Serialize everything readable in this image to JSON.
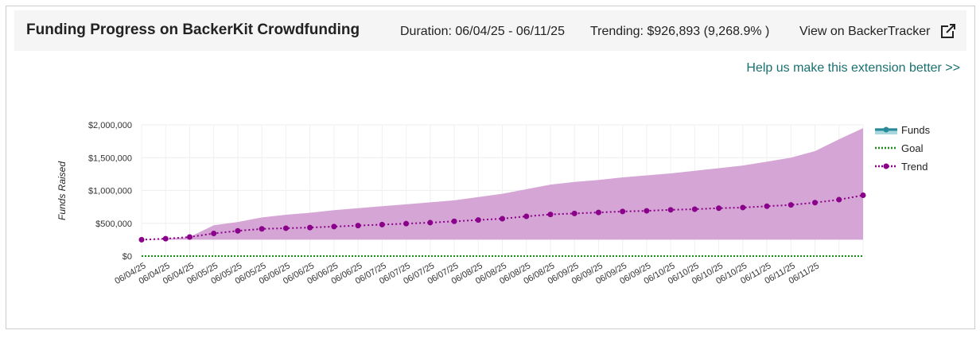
{
  "header": {
    "title": "Funding Progress on BackerKit Crowdfunding",
    "duration": "Duration: 06/04/25 - 06/11/25",
    "trending": "Trending: $926,893 (9,268.9% )",
    "link": "View on BackerTracker"
  },
  "feedback_link": "Help us make this extension better >>",
  "chart_data": {
    "type": "line",
    "ylabel": "Funds Raised",
    "categories": [
      "06/04/25",
      "06/04/25",
      "06/04/25",
      "06/05/25",
      "06/05/25",
      "06/05/25",
      "06/06/25",
      "06/06/25",
      "06/06/25",
      "06/06/25",
      "06/07/25",
      "06/07/25",
      "06/07/25",
      "06/07/25",
      "06/08/25",
      "06/08/25",
      "06/08/25",
      "06/08/25",
      "06/09/25",
      "06/09/25",
      "06/09/25",
      "06/09/25",
      "06/10/25",
      "06/10/25",
      "06/10/25",
      "06/10/25",
      "06/11/25",
      "06/11/25",
      "06/11/25",
      null,
      null
    ],
    "series": [
      {
        "name": "Funds",
        "color": "#2a8a9a",
        "values": [
          250000,
          null,
          null,
          null,
          null,
          null,
          null,
          null,
          null,
          null,
          null,
          null,
          null,
          null,
          null,
          null,
          null,
          null,
          null,
          null,
          null,
          null,
          null,
          null,
          null,
          null,
          null,
          null,
          null,
          null,
          null
        ]
      },
      {
        "name": "Goal",
        "color": "#1a8a1a",
        "values": [
          0,
          0,
          0,
          0,
          0,
          0,
          0,
          0,
          0,
          0,
          0,
          0,
          0,
          0,
          0,
          0,
          0,
          0,
          0,
          0,
          0,
          0,
          0,
          0,
          0,
          0,
          0,
          0,
          0,
          0,
          0
        ]
      },
      {
        "name": "Trend",
        "color": "#8b008b",
        "values": [
          250000,
          265000,
          291000,
          345000,
          385000,
          415000,
          425000,
          435000,
          450000,
          465000,
          480000,
          495000,
          510000,
          530000,
          550000,
          570000,
          606000,
          635000,
          650000,
          665000,
          680000,
          690000,
          705000,
          715000,
          730000,
          740000,
          760000,
          780000,
          815000,
          860000,
          926893
        ]
      }
    ],
    "band": {
      "color": "#d5a6d5",
      "upper": [
        250000,
        265000,
        291000,
        470000,
        520000,
        590000,
        630000,
        660000,
        700000,
        730000,
        760000,
        790000,
        820000,
        850000,
        900000,
        950000,
        1020000,
        1090000,
        1130000,
        1160000,
        1200000,
        1230000,
        1260000,
        1300000,
        1340000,
        1380000,
        1440000,
        1500000,
        1600000,
        1780000,
        1950000
      ],
      "lower": [
        250000,
        250000,
        250000,
        250000,
        250000,
        250000,
        250000,
        250000,
        250000,
        250000,
        250000,
        250000,
        250000,
        250000,
        250000,
        250000,
        250000,
        250000,
        250000,
        250000,
        250000,
        250000,
        250000,
        250000,
        250000,
        250000,
        250000,
        250000,
        250000,
        250000,
        250000
      ]
    },
    "ylim": [
      0,
      2000000
    ],
    "yticks": [
      {
        "value": 0,
        "label": "$0"
      },
      {
        "value": 500000,
        "label": "$500,000"
      },
      {
        "value": 1000000,
        "label": "$1,000,000"
      },
      {
        "value": 1500000,
        "label": "$1,500,000"
      },
      {
        "value": 2000000,
        "label": "$2,000,000"
      }
    ],
    "grid": true
  }
}
